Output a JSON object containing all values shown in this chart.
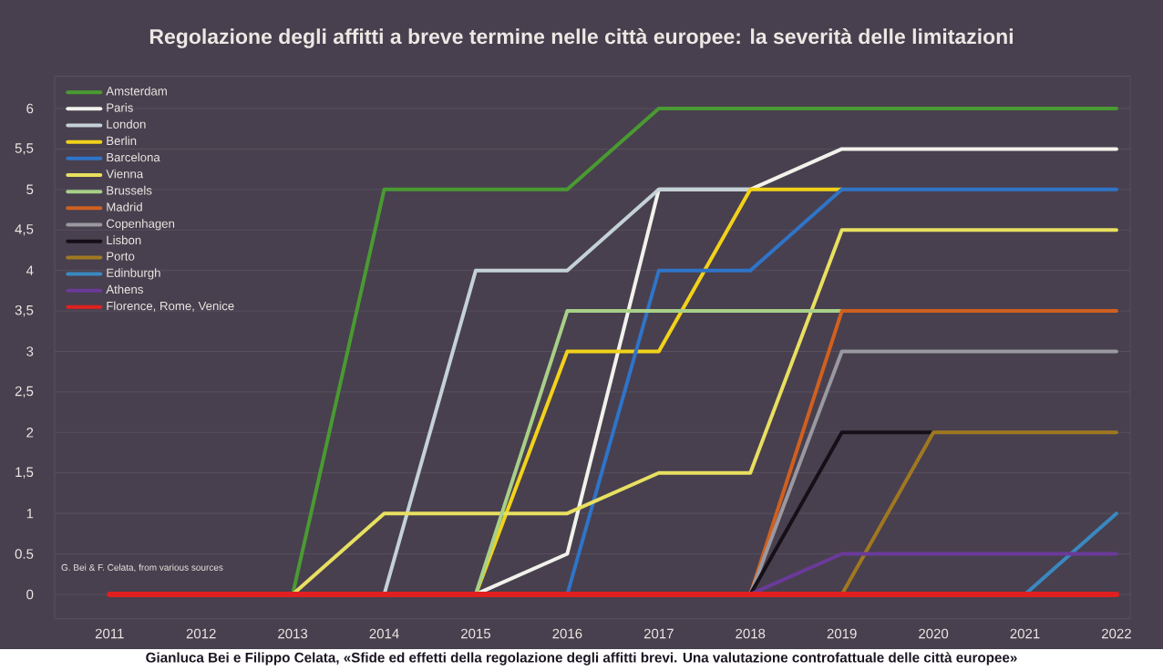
{
  "chart_data": {
    "type": "line",
    "title": "Regolazione degli affitti a breve termine nelle città europee: la severità delle limitazioni",
    "x": [
      2011,
      2012,
      2013,
      2014,
      2015,
      2016,
      2017,
      2018,
      2019,
      2020,
      2021,
      2022
    ],
    "series": [
      {
        "name": "Amsterdam",
        "color": "#4a9a32",
        "values": [
          null,
          null,
          0,
          5,
          5,
          5,
          6,
          6,
          6,
          6,
          6,
          6
        ]
      },
      {
        "name": "Paris",
        "color": "#f2f2ec",
        "values": [
          null,
          null,
          null,
          null,
          0,
          0.5,
          5,
          5,
          5.5,
          5.5,
          5.5,
          5.5
        ]
      },
      {
        "name": "London",
        "color": "#c4d2d8",
        "values": [
          null,
          null,
          null,
          0,
          4,
          4,
          5,
          5,
          null,
          null,
          null,
          null
        ]
      },
      {
        "name": "Berlin",
        "color": "#f2d21a",
        "values": [
          null,
          null,
          null,
          null,
          0,
          3,
          3,
          5,
          5,
          null,
          null,
          null
        ]
      },
      {
        "name": "Barcelona",
        "color": "#2f74c8",
        "values": [
          null,
          null,
          null,
          null,
          null,
          0,
          4,
          4,
          5,
          5,
          5,
          5
        ]
      },
      {
        "name": "Vienna",
        "color": "#e8e060",
        "values": [
          null,
          null,
          0,
          1,
          1,
          1,
          1.5,
          1.5,
          4.5,
          4.5,
          4.5,
          4.5
        ]
      },
      {
        "name": "Brussels",
        "color": "#a8d088",
        "values": [
          null,
          null,
          null,
          null,
          0,
          3.5,
          3.5,
          3.5,
          3.5,
          null,
          null,
          null
        ]
      },
      {
        "name": "Madrid",
        "color": "#d06020",
        "values": [
          null,
          null,
          null,
          null,
          null,
          null,
          null,
          0,
          3.5,
          3.5,
          3.5,
          3.5
        ]
      },
      {
        "name": "Copenhagen",
        "color": "#9a98a0",
        "values": [
          null,
          null,
          null,
          null,
          null,
          null,
          null,
          0,
          3,
          3,
          3,
          3
        ]
      },
      {
        "name": "Lisbon",
        "color": "#151018",
        "values": [
          null,
          null,
          null,
          null,
          null,
          null,
          null,
          0,
          2,
          2,
          null,
          null
        ]
      },
      {
        "name": "Porto",
        "color": "#a07820",
        "values": [
          null,
          null,
          null,
          null,
          null,
          null,
          null,
          null,
          0,
          2,
          2,
          2
        ]
      },
      {
        "name": "Edinburgh",
        "color": "#3a88c0",
        "values": [
          null,
          null,
          null,
          null,
          null,
          null,
          null,
          null,
          null,
          null,
          0,
          1
        ]
      },
      {
        "name": "Athens",
        "color": "#6a3a9a",
        "values": [
          null,
          null,
          null,
          null,
          null,
          null,
          null,
          0,
          0.5,
          0.5,
          0.5,
          0.5
        ]
      },
      {
        "name": "Florence, Rome, Venice",
        "color": "#e02020",
        "values": [
          0,
          0,
          0,
          0,
          0,
          0,
          0,
          0,
          0,
          0,
          0,
          0
        ]
      }
    ],
    "xlim": [
      2010.4,
      2022.15
    ],
    "ylim": [
      -0.3,
      6.4
    ],
    "xticks": [
      2011,
      2012,
      2013,
      2014,
      2015,
      2016,
      2017,
      2018,
      2019,
      2020,
      2021,
      2022
    ],
    "yticks": [
      0,
      {
        "value": 0.5,
        "label": "0.5"
      },
      1,
      {
        "value": 1.5,
        "label": "1,5"
      },
      2,
      {
        "value": 2.5,
        "label": "2,5"
      },
      3,
      {
        "value": 3.5,
        "label": "3,5"
      },
      4,
      {
        "value": 4.5,
        "label": "4,5"
      },
      5,
      {
        "value": 5.5,
        "label": "5,5"
      },
      6
    ],
    "grid": "y",
    "legend": "top left",
    "line_style": "solid",
    "marker": "none",
    "annotations": [
      "G. Bei & F. Celata, from various sources",
      "Gianluca Bei e Filippo Celata, «Sfide ed effetti della regolazione degli affitti brevi. Una valutazione controfattuale delle città europee»"
    ]
  }
}
